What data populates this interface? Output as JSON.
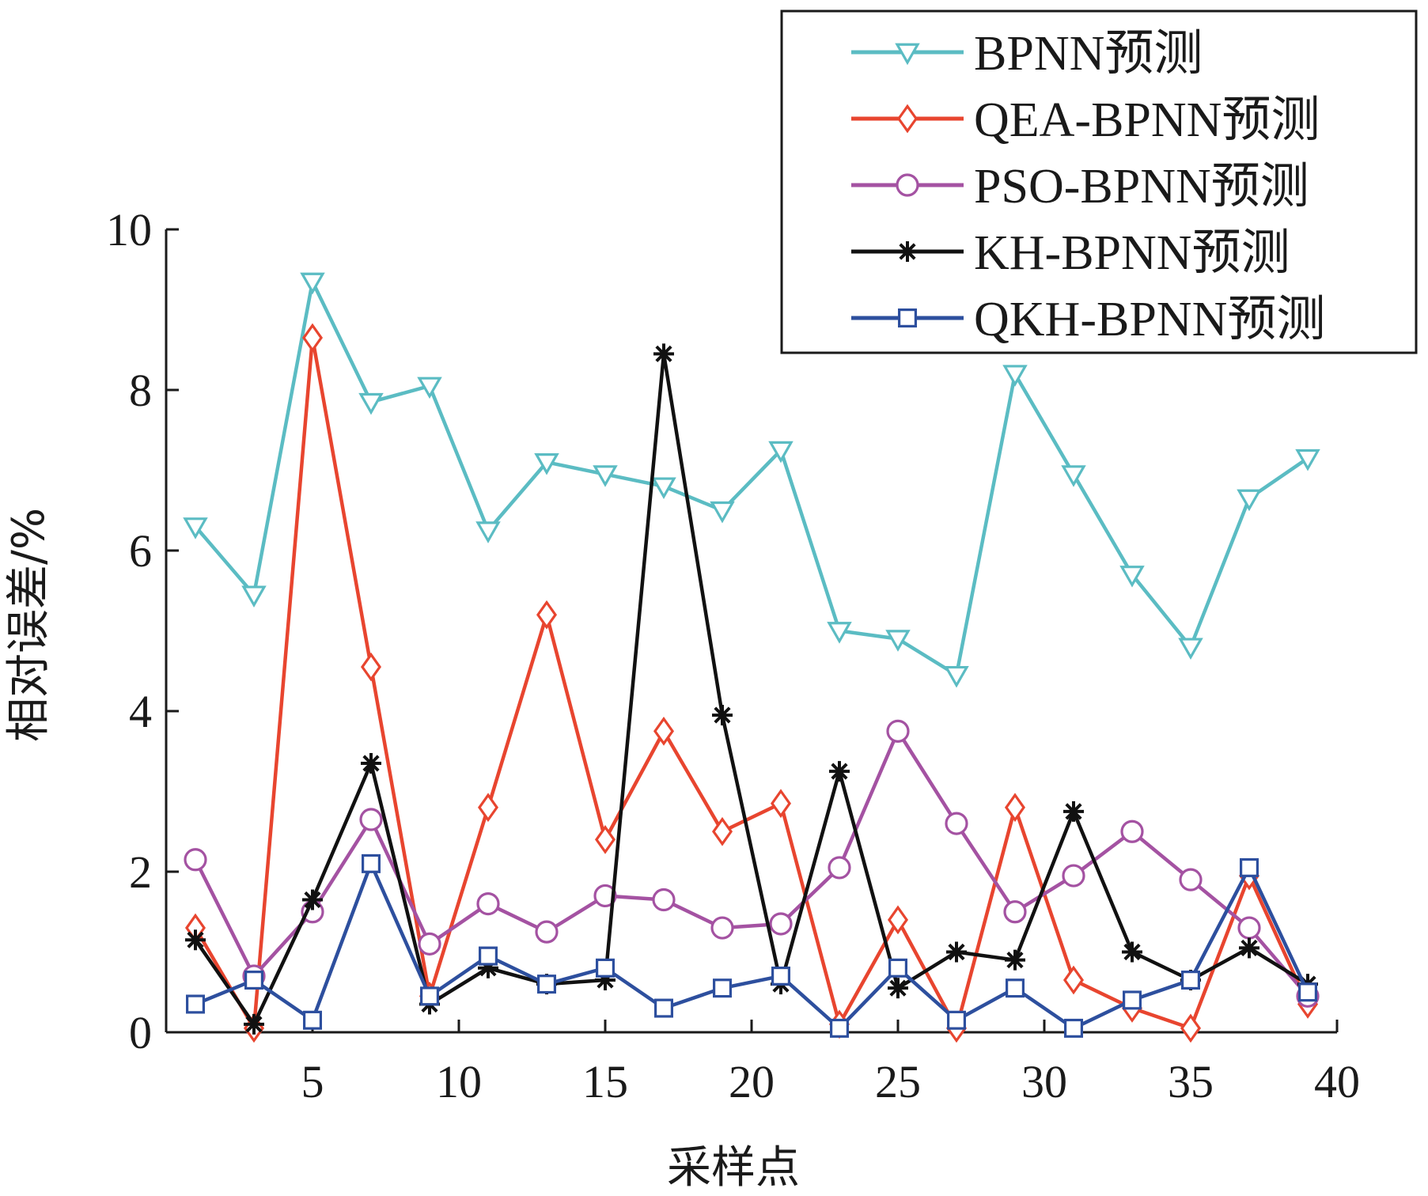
{
  "chart_data": {
    "type": "line",
    "xlabel": "采样点",
    "ylabel": "相对误差/%",
    "xlim": [
      0,
      40
    ],
    "ylim": [
      0,
      10
    ],
    "xticks": [
      5,
      10,
      15,
      20,
      25,
      30,
      35,
      40
    ],
    "yticks": [
      0,
      2,
      4,
      6,
      8,
      10
    ],
    "grid": false,
    "legend_position": "top-right",
    "x": [
      1,
      3,
      5,
      7,
      9,
      11,
      13,
      15,
      17,
      19,
      21,
      23,
      25,
      27,
      29,
      31,
      33,
      35,
      37,
      39
    ],
    "series": [
      {
        "name": "BPNN预测",
        "color": "#5bbcc3",
        "marker": "triangle-down",
        "values": [
          6.3,
          5.45,
          9.35,
          7.85,
          8.05,
          6.25,
          7.1,
          6.95,
          6.8,
          6.5,
          7.25,
          5.0,
          4.9,
          4.45,
          8.2,
          6.95,
          5.7,
          4.8,
          6.65,
          7.15
        ]
      },
      {
        "name": "QEA-BPNN预测",
        "color": "#e8452f",
        "marker": "diamond",
        "values": [
          1.3,
          0.05,
          8.65,
          4.55,
          0.45,
          2.8,
          5.2,
          2.4,
          3.75,
          2.5,
          2.85,
          0.1,
          1.4,
          0.05,
          2.8,
          0.65,
          0.3,
          0.05,
          1.95,
          0.35
        ]
      },
      {
        "name": "PSO-BPNN预测",
        "color": "#a452a2",
        "marker": "circle",
        "values": [
          2.15,
          0.7,
          1.5,
          2.65,
          1.1,
          1.6,
          1.25,
          1.7,
          1.65,
          1.3,
          1.35,
          2.05,
          3.75,
          2.6,
          1.5,
          1.95,
          2.5,
          1.9,
          1.3,
          0.45
        ]
      },
      {
        "name": "KH-BPNN预测",
        "color": "#111111",
        "marker": "asterisk",
        "values": [
          1.15,
          0.1,
          1.65,
          3.35,
          0.35,
          0.8,
          0.6,
          0.65,
          8.45,
          3.95,
          0.6,
          3.25,
          0.55,
          1.0,
          0.9,
          2.75,
          1.0,
          0.65,
          1.05,
          0.6
        ]
      },
      {
        "name": "QKH-BPNN预测",
        "color": "#2d4f9e",
        "marker": "square",
        "values": [
          0.35,
          0.65,
          0.15,
          2.1,
          0.45,
          0.95,
          0.6,
          0.8,
          0.3,
          0.55,
          0.7,
          0.05,
          0.8,
          0.15,
          0.55,
          0.05,
          0.4,
          0.65,
          2.05,
          0.5
        ]
      }
    ]
  }
}
